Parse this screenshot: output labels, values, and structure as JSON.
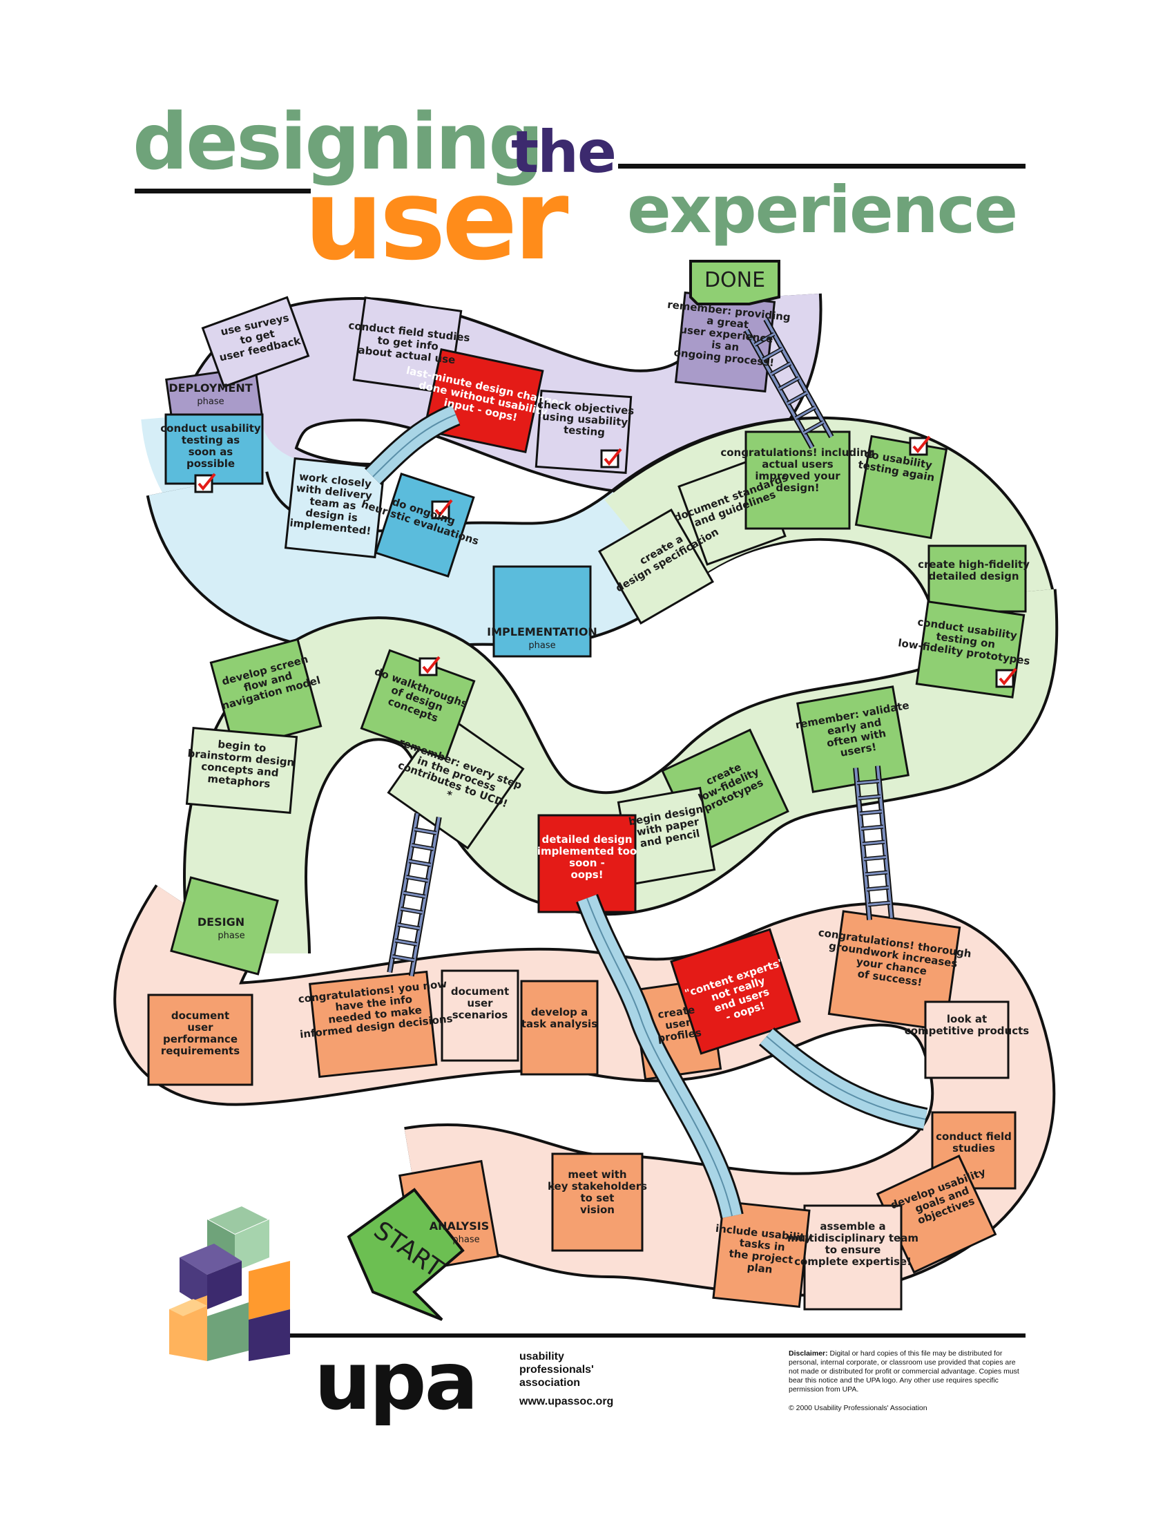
{
  "title": {
    "word1": "designing",
    "word2": "the",
    "word3": "user",
    "word4": "experience"
  },
  "colors": {
    "green_title": "#6fa37a",
    "purple_title": "#3c2a6e",
    "orange_title": "#ff8c1a",
    "deployment_dark": "#a99bc9",
    "deployment_light": "#ddd6ee",
    "implementation_dark": "#5bbcdc",
    "implementation_light": "#d6eef7",
    "design_dark": "#8fcf73",
    "design_light": "#dff0d2",
    "analysis_dark": "#f5a070",
    "analysis_light": "#fbe0d6",
    "oops_red": "#e41b17",
    "slide": "#a9d5e6",
    "ladder": "#7c8fc0"
  },
  "labels": {
    "done": "DONE",
    "start": "START",
    "remember_process": "remember: providing a great user experience is an ongoing process!",
    "use_surveys": "use surveys to get user feedback",
    "conduct_field_get_info": "conduct field studies to get info about actual use",
    "last_minute": "last-minute design changes done without usability input - oops!",
    "check_objectives": "check objectives using usability testing",
    "conduct_usability_soon": "conduct usability testing as soon as possible",
    "work_closely": "work closely with delivery team as design is implemented!",
    "ongoing_heuristic": "do ongoing heuristic evaluations",
    "create_design_spec": "create a design specification",
    "document_standards": "document standards and guidelines",
    "congrats_actual_users": "congratulations! including actual users improved your design!",
    "do_usability_again": "do usability testing again",
    "create_hifi": "create high-fidelity detailed design",
    "conduct_testing_hifi": "conduct usability testing on low-fidelity prototypes",
    "develop_screen_flow": "develop screen flow and navigation model",
    "do_walkthroughs": "do walkthroughs of design concepts",
    "begin_brainstorm": "begin to brainstorm design concepts and metaphors",
    "remember_every_step": "remember: every step in the process contributes to UCD! *",
    "detailed_too_soon": "detailed design implemented too soon - oops!",
    "begin_design_paper": "begin design with paper and pencil",
    "create_lofi": "create low-fidelity prototypes",
    "remember_validate": "remember: validate early and often with users!",
    "document_performance": "document user performance requirements",
    "congrats_info_needed": "congratulations! you now have the info needed to make informed design decisions",
    "document_scenarios": "document user scenarios",
    "develop_task_analysis": "develop a task analysis",
    "create_user_profiles": "create user profiles",
    "content_experts": "\"content experts\" not really end users - oops!",
    "congrats_groundwork": "congratulations! thorough groundwork increases your chance of success!",
    "look_competitive": "look at competitive products",
    "conduct_field_studies": "conduct field studies",
    "develop_usability_goals": "develop usability goals and objectives",
    "assemble_team": "assemble a multidisciplinary team to ensure complete expertise!",
    "include_usability_tasks": "include usability tasks in the project plan",
    "meet_stakeholders": "meet with key stakeholders to set vision"
  },
  "phases": {
    "deployment": "DEPLOYMENT",
    "implementation": "IMPLEMENTATION",
    "design": "DESIGN",
    "analysis": "ANALYSIS",
    "phase_word": "phase"
  },
  "footer": {
    "logo": "upa",
    "org_line1": "usability",
    "org_line2": "professionals'",
    "org_line3": "association",
    "url": "www.upassoc.org",
    "disclaimer_label": "Disclaimer:",
    "disclaimer_text": "Digital or hard copies of this file may be distributed for personal, internal corporate, or classroom use provided that copies are not made or distributed for profit or commercial advantage. Copies must bear this notice and the UPA logo. Any other use requires specific permission from UPA.",
    "copyright": "© 2000 Usability Professionals' Association"
  }
}
